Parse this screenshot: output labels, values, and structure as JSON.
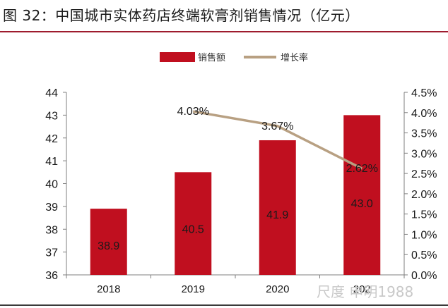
{
  "header": {
    "figure_title": "图 32：中国城市实体药店终端软膏剂销售情况（亿元）"
  },
  "chart_data": {
    "type": "bar",
    "categories": [
      "2018",
      "2019",
      "2020",
      "2021"
    ],
    "category_labels_visible": [
      "2018",
      "2019",
      "2020",
      "202"
    ],
    "series": [
      {
        "name": "销售额",
        "kind": "bar",
        "axis": "left",
        "color": "#c00f1f",
        "values": [
          38.9,
          40.5,
          41.9,
          43.0
        ],
        "labels": [
          "38.9",
          "40.5",
          "41.9",
          "43.0"
        ]
      },
      {
        "name": "增长率",
        "kind": "line",
        "axis": "right",
        "color": "#b8a082",
        "values": [
          null,
          4.03,
          3.67,
          2.62
        ],
        "labels": [
          "",
          "4.03%",
          "3.67%",
          "2.62%"
        ]
      }
    ],
    "y_left": {
      "min": 36,
      "max": 44,
      "ticks": [
        "36",
        "37",
        "38",
        "39",
        "40",
        "41",
        "42",
        "43",
        "44"
      ]
    },
    "y_right": {
      "min": 0,
      "max": 4.5,
      "ticks": [
        "0.0%",
        "0.5%",
        "1.0%",
        "1.5%",
        "2.0%",
        "2.5%",
        "3.0%",
        "3.5%",
        "4.0%",
        "4.5%"
      ]
    },
    "legend_position": "top-center",
    "grid": false
  },
  "watermark": {
    "text": "尺度 申明1988"
  }
}
